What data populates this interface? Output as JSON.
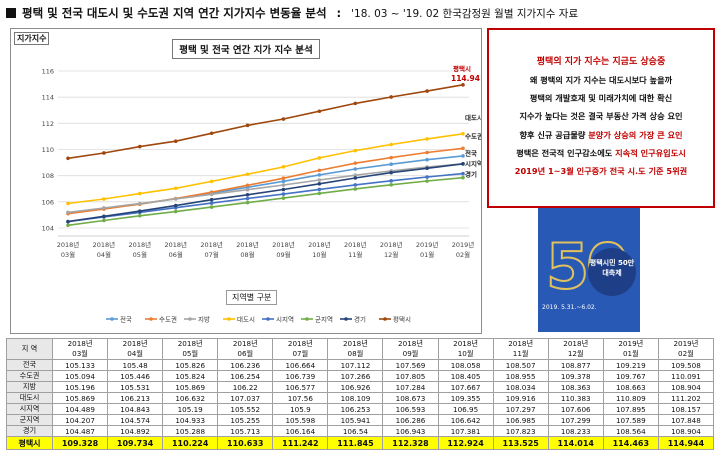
{
  "title": {
    "main": "평택 및 전국 대도시 및 수도권 지역 연간 지가지수 변동율 분석",
    "separator": ":",
    "source": "'18. 03 ~ '19. 02 한국감정원 월별 지가지수 자료"
  },
  "chart_data": {
    "type": "line",
    "title": "평택 및 전국 연간 지가 지수 분석",
    "y_unit_label": "지가지수",
    "xlabel": "지역별 구분",
    "x_years": [
      "2018년",
      "2018년",
      "2018년",
      "2018년",
      "2018년",
      "2018년",
      "2018년",
      "2018년",
      "2018년",
      "2018년",
      "2019년",
      "2019년"
    ],
    "x_months": [
      "03월",
      "04월",
      "05월",
      "06월",
      "07월",
      "08월",
      "09월",
      "10월",
      "11월",
      "12월",
      "01월",
      "02월"
    ],
    "ylim": [
      104,
      116
    ],
    "yticks": [
      "104",
      "106",
      "108",
      "110",
      "112",
      "114",
      "116"
    ],
    "grid": true,
    "legend_position": "bottom",
    "series": [
      {
        "name": "전국",
        "color": "#5b9bd5",
        "values": [
          105.133,
          105.48,
          105.826,
          106.236,
          106.664,
          107.112,
          107.569,
          108.058,
          108.507,
          108.877,
          109.219,
          109.508
        ]
      },
      {
        "name": "수도권",
        "color": "#ed7d31",
        "values": [
          105.094,
          105.446,
          105.824,
          106.254,
          106.739,
          107.266,
          107.805,
          108.405,
          108.955,
          109.378,
          109.767,
          110.091
        ]
      },
      {
        "name": "지방",
        "color": "#a5a5a5",
        "values": [
          105.196,
          105.531,
          105.869,
          106.22,
          106.577,
          106.926,
          107.284,
          107.667,
          108.034,
          108.363,
          108.663,
          108.904
        ]
      },
      {
        "name": "대도시",
        "color": "#ffc000",
        "values": [
          105.869,
          106.213,
          106.632,
          107.037,
          107.56,
          108.109,
          108.673,
          109.355,
          109.916,
          110.383,
          110.809,
          111.202
        ]
      },
      {
        "name": "시지역",
        "color": "#4472c4",
        "values": [
          104.489,
          104.843,
          105.19,
          105.552,
          105.9,
          106.253,
          106.593,
          106.95,
          107.297,
          107.606,
          107.895,
          108.157
        ]
      },
      {
        "name": "군지역",
        "color": "#70ad47",
        "values": [
          104.207,
          104.574,
          104.933,
          105.255,
          105.598,
          105.941,
          106.286,
          106.642,
          106.985,
          107.299,
          107.589,
          107.848
        ]
      },
      {
        "name": "경기",
        "color": "#264478",
        "values": [
          104.487,
          104.892,
          105.288,
          105.713,
          106.164,
          106.54,
          106.943,
          107.381,
          107.823,
          108.233,
          108.564,
          108.904
        ]
      },
      {
        "name": "평택시",
        "color": "#9e480e",
        "values": [
          109.328,
          109.734,
          110.224,
          110.633,
          111.242,
          111.845,
          112.328,
          112.924,
          113.525,
          114.014,
          114.463,
          114.944
        ]
      }
    ],
    "end_labels": {
      "평택시": "평택시",
      "평택시_value": "114.94",
      "대도시": "대도시",
      "수도권": "수도권",
      "전국": "전국",
      "시지역": "시지역",
      "경기": "경기"
    }
  },
  "info": {
    "heading": "평택의 지가 지수는 지금도 상승중",
    "lines": [
      {
        "text": "왜 평택의 지가 지수는 대도시보다 높을까"
      },
      {
        "text": "평택의 개발호재 및 미래가치에 대한 확신"
      },
      {
        "text": "지수가 높다는 것은 결국 부동산 가격 상승 요인"
      },
      {
        "pre": "향후 신규 공급물량 ",
        "red": "분양가 상승의 가장 큰 요인",
        "post": ""
      },
      {
        "pre": "평택은 전국적 인구감소에도 ",
        "red": "지속적 인구유입도시",
        "post": ""
      },
      {
        "pre": "",
        "red": "2019년 1~3월 인구증가  전국 시.도 기준 5위권",
        "post": ""
      }
    ]
  },
  "poster": {
    "number": "50",
    "badge": "평택시민 50만 대축제",
    "date": "2019. 5.31.~6.02."
  },
  "table": {
    "corner": "지 역",
    "years": [
      "2018년",
      "2018년",
      "2018년",
      "2018년",
      "2018년",
      "2018년",
      "2018년",
      "2018년",
      "2018년",
      "2018년",
      "2019년",
      "2019년"
    ],
    "months": [
      "03월",
      "04월",
      "05월",
      "06월",
      "07월",
      "08월",
      "09월",
      "10월",
      "11월",
      "12월",
      "01월",
      "02월"
    ],
    "rows": [
      {
        "name": "전국",
        "values": [
          "105.133",
          "105.48",
          "105.826",
          "106.236",
          "106.664",
          "107.112",
          "107.569",
          "108.058",
          "108.507",
          "108.877",
          "109.219",
          "109.508"
        ]
      },
      {
        "name": "수도권",
        "values": [
          "105.094",
          "105.446",
          "105.824",
          "106.254",
          "106.739",
          "107.266",
          "107.805",
          "108.405",
          "108.955",
          "109.378",
          "109.767",
          "110.091"
        ]
      },
      {
        "name": "지방",
        "values": [
          "105.196",
          "105.531",
          "105.869",
          "106.22",
          "106.577",
          "106.926",
          "107.284",
          "107.667",
          "108.034",
          "108.363",
          "108.663",
          "108.904"
        ]
      },
      {
        "name": "대도시",
        "values": [
          "105.869",
          "106.213",
          "106.632",
          "107.037",
          "107.56",
          "108.109",
          "108.673",
          "109.355",
          "109.916",
          "110.383",
          "110.809",
          "111.202"
        ]
      },
      {
        "name": "시지역",
        "values": [
          "104.489",
          "104.843",
          "105.19",
          "105.552",
          "105.9",
          "106.253",
          "106.593",
          "106.95",
          "107.297",
          "107.606",
          "107.895",
          "108.157"
        ]
      },
      {
        "name": "군지역",
        "values": [
          "104.207",
          "104.574",
          "104.933",
          "105.255",
          "105.598",
          "105.941",
          "106.286",
          "106.642",
          "106.985",
          "107.299",
          "107.589",
          "107.848"
        ]
      },
      {
        "name": "경기",
        "values": [
          "104.487",
          "104.892",
          "105.288",
          "105.713",
          "106.164",
          "106.54",
          "106.943",
          "107.381",
          "107.823",
          "108.233",
          "108.564",
          "108.904"
        ]
      }
    ],
    "highlight_row": {
      "name": "평택시",
      "values": [
        "109.328",
        "109.734",
        "110.224",
        "110.633",
        "111.242",
        "111.845",
        "112.328",
        "112.924",
        "113.525",
        "114.014",
        "114.463",
        "114.944"
      ]
    }
  }
}
